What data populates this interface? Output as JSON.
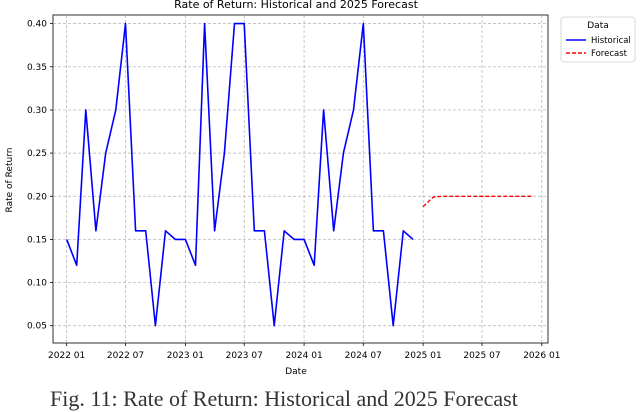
{
  "chart_data": {
    "type": "line",
    "title": "Rate of Return: Historical and 2025 Forecast",
    "xlabel": "Date",
    "ylabel": "Rate of Return",
    "x_tick_labels": [
      "2022 01",
      "2022 07",
      "2023 01",
      "2023 07",
      "2024 01",
      "2024 07",
      "2025 01",
      "2025 07",
      "2026 01"
    ],
    "y_tick_labels": [
      "0.05",
      "0.10",
      "0.15",
      "0.20",
      "0.25",
      "0.30",
      "0.35",
      "0.40"
    ],
    "ylim": [
      0.03,
      0.41
    ],
    "xlim": [
      "2021-11-20",
      "2026-01-20"
    ],
    "grid": true,
    "legend": {
      "title": "Data",
      "placement": "outside-right"
    },
    "series": [
      {
        "name": "Historical",
        "color": "#0000ff",
        "style": "solid",
        "x": [
          "2022-01-01",
          "2022-02-01",
          "2022-03-01",
          "2022-04-01",
          "2022-05-01",
          "2022-06-01",
          "2022-07-01",
          "2022-08-01",
          "2022-09-01",
          "2022-10-01",
          "2022-11-01",
          "2022-12-01",
          "2023-01-01",
          "2023-02-01",
          "2023-03-01",
          "2023-04-01",
          "2023-05-01",
          "2023-06-01",
          "2023-07-01",
          "2023-08-01",
          "2023-09-01",
          "2023-10-01",
          "2023-11-01",
          "2023-12-01",
          "2024-01-01",
          "2024-02-01",
          "2024-03-01",
          "2024-04-01",
          "2024-05-01",
          "2024-06-01",
          "2024-07-01",
          "2024-08-01",
          "2024-09-01",
          "2024-10-01",
          "2024-11-01",
          "2024-12-01"
        ],
        "values": [
          0.15,
          0.12,
          0.3,
          0.16,
          0.25,
          0.3,
          0.4,
          0.16,
          0.16,
          0.05,
          0.16,
          0.15,
          0.15,
          0.12,
          0.4,
          0.16,
          0.25,
          0.4,
          0.4,
          0.16,
          0.16,
          0.05,
          0.16,
          0.15,
          0.15,
          0.12,
          0.3,
          0.16,
          0.25,
          0.3,
          0.4,
          0.16,
          0.16,
          0.05,
          0.16,
          0.15
        ]
      },
      {
        "name": "Forecast",
        "color": "#ff0000",
        "style": "dashed",
        "x": [
          "2025-01-01",
          "2025-02-01",
          "2025-03-01",
          "2025-04-01",
          "2025-05-01",
          "2025-06-01",
          "2025-07-01",
          "2025-08-01",
          "2025-09-01",
          "2025-10-01",
          "2025-11-01",
          "2025-12-01"
        ],
        "values": [
          0.188,
          0.199,
          0.2,
          0.2,
          0.2,
          0.2,
          0.2,
          0.2,
          0.2,
          0.2,
          0.2,
          0.2
        ]
      }
    ]
  },
  "caption": "Fig. 11: Rate of Return: Historical and 2025 Forecast"
}
